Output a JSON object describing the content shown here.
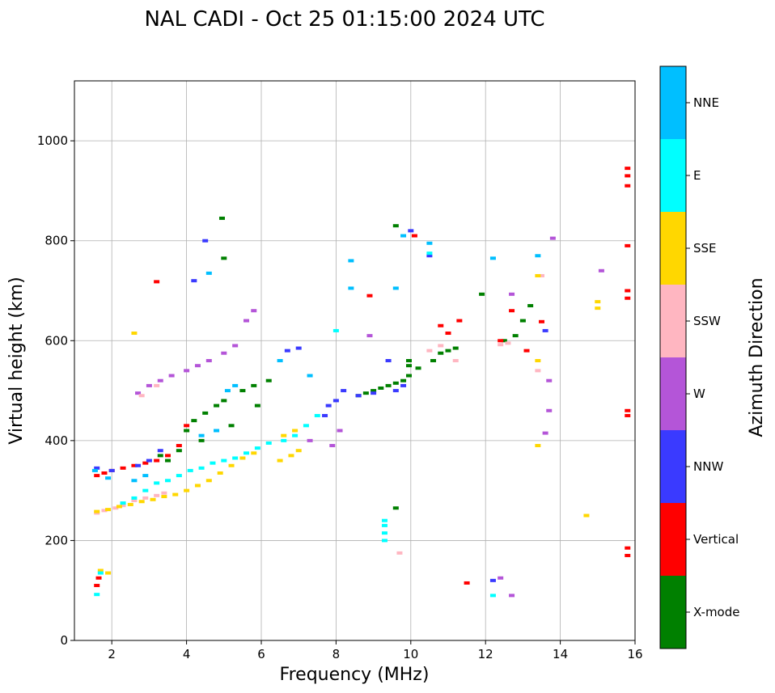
{
  "chart_data": {
    "type": "scatter",
    "title": "NAL CADI - Oct 25 01:15:00 2024 UTC",
    "xlabel": "Frequency (MHz)",
    "ylabel": "Virtual height (km)",
    "xlim": [
      1,
      16
    ],
    "ylim": [
      0,
      1120
    ],
    "xticks": [
      "2",
      "4",
      "6",
      "8",
      "10",
      "12",
      "14",
      "16"
    ],
    "yticks": [
      "0",
      "200",
      "400",
      "600",
      "800",
      "1000"
    ],
    "grid": true,
    "colorbar": {
      "label": "Azimuth Direction",
      "categories": [
        {
          "name": "X-mode",
          "color": "#008000"
        },
        {
          "name": "Vertical",
          "color": "#ff0000"
        },
        {
          "name": "NNW",
          "color": "#3a3aff"
        },
        {
          "name": "W",
          "color": "#b455d8"
        },
        {
          "name": "SSW",
          "color": "#ffb6c1"
        },
        {
          "name": "SSE",
          "color": "#ffd700"
        },
        {
          "name": "E",
          "color": "#00ffff"
        },
        {
          "name": "NNE",
          "color": "#00bfff"
        }
      ]
    },
    "series": [
      {
        "name": "X-mode",
        "points": [
          [
            3.3,
            370
          ],
          [
            3.8,
            380
          ],
          [
            4.0,
            420
          ],
          [
            4.2,
            440
          ],
          [
            4.5,
            455
          ],
          [
            4.8,
            470
          ],
          [
            5.0,
            480
          ],
          [
            5.5,
            500
          ],
          [
            5.8,
            510
          ],
          [
            6.2,
            520
          ],
          [
            3.5,
            360
          ],
          [
            4.4,
            400
          ],
          [
            5.2,
            430
          ],
          [
            5.9,
            470
          ],
          [
            8.6,
            490
          ],
          [
            8.8,
            495
          ],
          [
            9.0,
            500
          ],
          [
            9.2,
            505
          ],
          [
            9.4,
            510
          ],
          [
            9.6,
            515
          ],
          [
            9.8,
            520
          ],
          [
            9.95,
            530
          ],
          [
            9.95,
            550
          ],
          [
            9.95,
            560
          ],
          [
            10.2,
            545
          ],
          [
            10.6,
            560
          ],
          [
            10.8,
            575
          ],
          [
            11.0,
            580
          ],
          [
            11.2,
            585
          ],
          [
            12.5,
            600
          ],
          [
            12.8,
            610
          ],
          [
            13.0,
            640
          ],
          [
            13.2,
            670
          ],
          [
            11.9,
            693
          ],
          [
            9.6,
            265
          ],
          [
            5.0,
            765
          ],
          [
            4.95,
            845
          ],
          [
            9.6,
            830
          ]
        ]
      },
      {
        "name": "Vertical",
        "points": [
          [
            1.6,
            330
          ],
          [
            1.8,
            335
          ],
          [
            2.0,
            340
          ],
          [
            2.3,
            345
          ],
          [
            2.6,
            350
          ],
          [
            2.9,
            355
          ],
          [
            3.2,
            360
          ],
          [
            3.5,
            370
          ],
          [
            3.8,
            390
          ],
          [
            4.0,
            430
          ],
          [
            1.6,
            110
          ],
          [
            1.65,
            125
          ],
          [
            3.2,
            718
          ],
          [
            8.9,
            690
          ],
          [
            10.1,
            810
          ],
          [
            10.8,
            630
          ],
          [
            11.0,
            615
          ],
          [
            11.3,
            640
          ],
          [
            11.5,
            115
          ],
          [
            12.4,
            600
          ],
          [
            12.7,
            660
          ],
          [
            13.1,
            580
          ],
          [
            13.5,
            638
          ],
          [
            15.8,
            170
          ],
          [
            15.8,
            185
          ],
          [
            15.8,
            450
          ],
          [
            15.8,
            460
          ],
          [
            15.8,
            685
          ],
          [
            15.8,
            700
          ],
          [
            15.8,
            790
          ],
          [
            15.8,
            910
          ],
          [
            15.8,
            930
          ],
          [
            15.8,
            945
          ]
        ]
      },
      {
        "name": "NNW",
        "points": [
          [
            1.6,
            345
          ],
          [
            2.0,
            340
          ],
          [
            2.7,
            350
          ],
          [
            3.0,
            360
          ],
          [
            3.3,
            380
          ],
          [
            4.2,
            720
          ],
          [
            4.5,
            800
          ],
          [
            6.7,
            580
          ],
          [
            7.0,
            585
          ],
          [
            7.7,
            450
          ],
          [
            7.8,
            470
          ],
          [
            8.0,
            480
          ],
          [
            8.2,
            500
          ],
          [
            8.6,
            490
          ],
          [
            9.0,
            495
          ],
          [
            9.4,
            560
          ],
          [
            9.6,
            500
          ],
          [
            9.8,
            510
          ],
          [
            10.0,
            820
          ],
          [
            10.5,
            770
          ],
          [
            12.2,
            120
          ],
          [
            13.6,
            620
          ]
        ]
      },
      {
        "name": "W",
        "points": [
          [
            2.7,
            495
          ],
          [
            3.0,
            510
          ],
          [
            3.3,
            520
          ],
          [
            3.6,
            530
          ],
          [
            4.0,
            540
          ],
          [
            4.3,
            550
          ],
          [
            4.6,
            560
          ],
          [
            5.0,
            575
          ],
          [
            5.3,
            590
          ],
          [
            5.6,
            640
          ],
          [
            5.8,
            660
          ],
          [
            7.9,
            390
          ],
          [
            8.1,
            420
          ],
          [
            7.3,
            400
          ],
          [
            8.9,
            610
          ],
          [
            12.4,
            125
          ],
          [
            12.7,
            90
          ],
          [
            12.7,
            693
          ],
          [
            13.6,
            415
          ],
          [
            13.7,
            460
          ],
          [
            13.7,
            520
          ],
          [
            13.8,
            805
          ],
          [
            15.1,
            740
          ]
        ]
      },
      {
        "name": "SSW",
        "points": [
          [
            1.6,
            255
          ],
          [
            1.8,
            260
          ],
          [
            2.1,
            265
          ],
          [
            2.3,
            270
          ],
          [
            2.6,
            280
          ],
          [
            2.9,
            285
          ],
          [
            3.2,
            290
          ],
          [
            3.4,
            295
          ],
          [
            2.8,
            490
          ],
          [
            3.2,
            510
          ],
          [
            10.5,
            580
          ],
          [
            10.8,
            590
          ],
          [
            11.2,
            560
          ],
          [
            12.4,
            592
          ],
          [
            12.6,
            595
          ],
          [
            13.4,
            540
          ],
          [
            9.7,
            175
          ],
          [
            13.5,
            730
          ]
        ]
      },
      {
        "name": "SSE",
        "points": [
          [
            1.6,
            258
          ],
          [
            1.9,
            262
          ],
          [
            2.2,
            268
          ],
          [
            2.5,
            272
          ],
          [
            2.8,
            278
          ],
          [
            3.1,
            282
          ],
          [
            3.4,
            288
          ],
          [
            3.7,
            292
          ],
          [
            4.0,
            300
          ],
          [
            4.3,
            310
          ],
          [
            4.6,
            320
          ],
          [
            4.9,
            335
          ],
          [
            5.2,
            350
          ],
          [
            5.5,
            365
          ],
          [
            5.8,
            375
          ],
          [
            6.5,
            360
          ],
          [
            6.8,
            370
          ],
          [
            7.0,
            380
          ],
          [
            6.6,
            410
          ],
          [
            6.9,
            420
          ],
          [
            1.7,
            140
          ],
          [
            1.9,
            135
          ],
          [
            2.6,
            615
          ],
          [
            13.4,
            390
          ],
          [
            13.4,
            560
          ],
          [
            13.4,
            730
          ],
          [
            14.7,
            250
          ],
          [
            15.0,
            665
          ],
          [
            15.0,
            678
          ]
        ]
      },
      {
        "name": "E",
        "points": [
          [
            1.6,
            92
          ],
          [
            1.7,
            135
          ],
          [
            2.3,
            275
          ],
          [
            2.6,
            285
          ],
          [
            2.9,
            300
          ],
          [
            3.2,
            315
          ],
          [
            3.5,
            320
          ],
          [
            3.8,
            330
          ],
          [
            4.1,
            340
          ],
          [
            4.4,
            345
          ],
          [
            4.7,
            355
          ],
          [
            5.0,
            360
          ],
          [
            5.3,
            365
          ],
          [
            5.6,
            375
          ],
          [
            5.9,
            385
          ],
          [
            6.2,
            395
          ],
          [
            6.6,
            400
          ],
          [
            6.9,
            410
          ],
          [
            7.2,
            430
          ],
          [
            7.5,
            450
          ],
          [
            9.3,
            200
          ],
          [
            9.3,
            215
          ],
          [
            9.3,
            230
          ],
          [
            9.3,
            240
          ],
          [
            10.5,
            775
          ],
          [
            12.2,
            90
          ],
          [
            8.0,
            620
          ]
        ]
      },
      {
        "name": "NNE",
        "points": [
          [
            1.55,
            340
          ],
          [
            1.9,
            325
          ],
          [
            2.6,
            320
          ],
          [
            2.9,
            330
          ],
          [
            4.4,
            410
          ],
          [
            4.8,
            420
          ],
          [
            5.1,
            500
          ],
          [
            5.3,
            510
          ],
          [
            4.6,
            735
          ],
          [
            8.4,
            705
          ],
          [
            8.4,
            760
          ],
          [
            9.6,
            705
          ],
          [
            9.8,
            810
          ],
          [
            10.5,
            795
          ],
          [
            12.2,
            765
          ],
          [
            13.4,
            770
          ],
          [
            6.5,
            560
          ],
          [
            7.3,
            530
          ]
        ]
      }
    ]
  }
}
